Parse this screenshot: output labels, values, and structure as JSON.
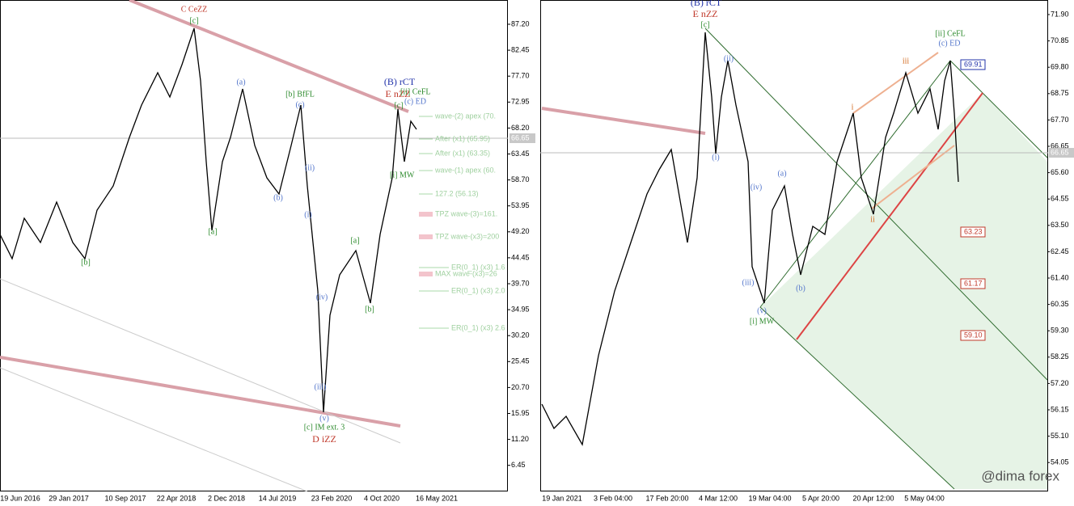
{
  "left_chart": {
    "price_ticks": [
      "87.20",
      "82.45",
      "77.70",
      "72.95",
      "68.20",
      "63.45",
      "58.70",
      "53.95",
      "49.20",
      "44.45",
      "39.70",
      "34.95",
      "30.20",
      "25.45",
      "20.70",
      "15.95",
      "11.20",
      "6.45"
    ],
    "time_ticks": [
      "19 Jun 2016",
      "29 Jan 2017",
      "10 Sep 2017",
      "22 Apr 2018",
      "2 Dec 2018",
      "14 Jul 2019",
      "23 Feb 2020",
      "4 Oct 2020",
      "16 May 2021"
    ],
    "current_price": "66.65",
    "annotations": [
      "C CeZZ",
      "[c]",
      "(B) rCT",
      "E nZZ",
      "[ii] CeFL",
      "(c) ED",
      "[b] BfFL",
      "(a)",
      "(c)",
      "(ii)",
      "(b)",
      "(i)",
      "[a]",
      "[b]",
      "[a]",
      "[b]",
      "(iv)",
      "(iii)",
      "(v)",
      "[c] IM ext. 3",
      "D iZZ",
      "[i] MW",
      "[c]"
    ],
    "levels": [
      "wave-(2) apex (70.",
      "After (x1) (65.95)",
      "After (x1) (63.35)",
      "wave-(1) apex (60.",
      "127.2 (56.13)",
      "TPZ wave-(3)=161.",
      "TPZ wave-(x3)=200",
      "ER(0_1) (x3) 1.6",
      "MAX wave-(x3)=26",
      "ER(0_1) (x3) 2.0",
      "ER(0_1) (x3) 2.6"
    ]
  },
  "right_chart": {
    "price_ticks": [
      "71.90",
      "70.85",
      "69.80",
      "68.75",
      "67.70",
      "66.65",
      "65.60",
      "64.55",
      "63.50",
      "62.45",
      "61.40",
      "60.35",
      "59.30",
      "58.25",
      "57.20",
      "56.15",
      "55.10",
      "54.05"
    ],
    "time_ticks": [
      "19 Jan 2021",
      "3 Feb 04:00",
      "17 Feb 20:00",
      "4 Mar 12:00",
      "19 Mar 04:00",
      "5 Apr 20:00",
      "20 Apr 12:00",
      "5 May 04:00"
    ],
    "current_price": "66.65",
    "annotations": [
      "(B) rCT",
      "E nZZ",
      "[c]",
      "(ii)",
      "(i)",
      "(iv)",
      "(iii)",
      "(v)",
      "[i] MW",
      "(a)",
      "(b)",
      "i",
      "ii",
      "iii",
      "[ii] CeFL",
      "(c) ED"
    ],
    "price_boxes": [
      "69.91",
      "63.23",
      "61.17",
      "59.10"
    ],
    "watermark": "@dima forex"
  }
}
